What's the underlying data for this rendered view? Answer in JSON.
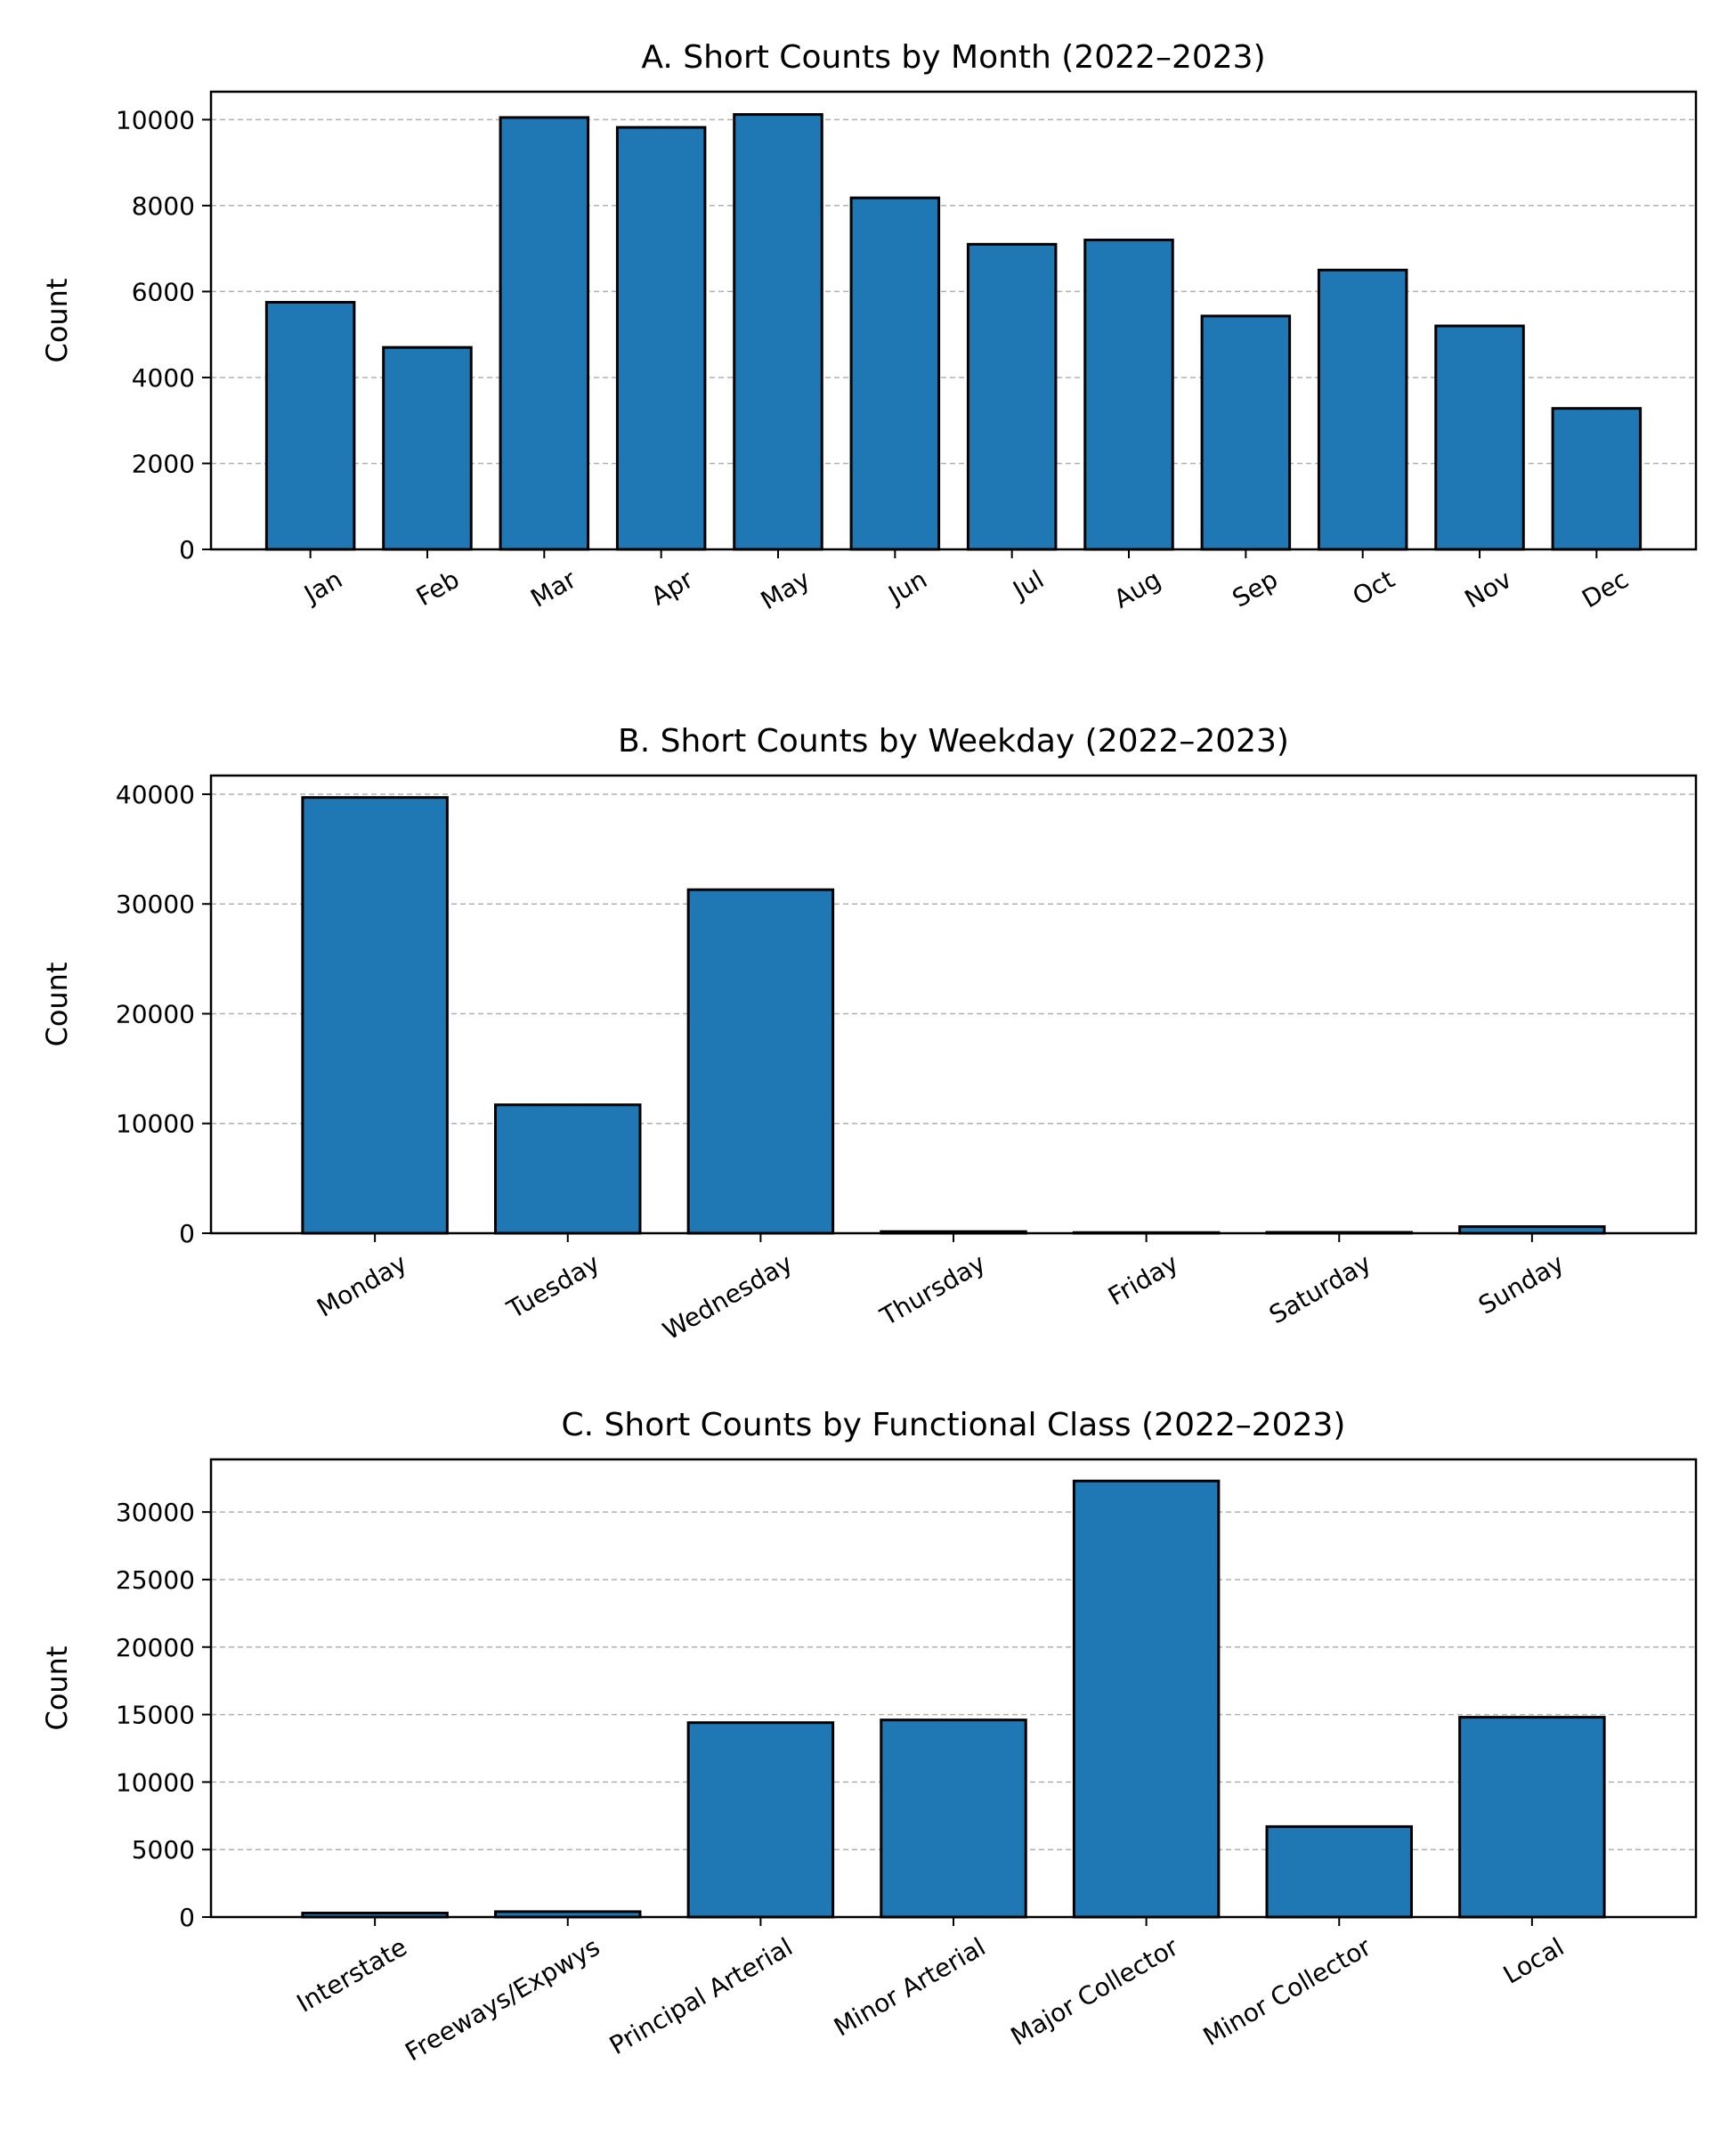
{
  "colors": {
    "bar_fill": "#1f77b4",
    "bar_edge": "#000000",
    "grid": "#b0b0b0"
  },
  "chart_data": [
    {
      "id": "month",
      "type": "bar",
      "title": "A. Short Counts by Month (2022–2023)",
      "xlabel": "",
      "ylabel": "Count",
      "categories": [
        "Jan",
        "Feb",
        "Mar",
        "Apr",
        "May",
        "Jun",
        "Jul",
        "Aug",
        "Sep",
        "Oct",
        "Nov",
        "Dec"
      ],
      "values": [
        5750,
        4700,
        10050,
        9820,
        10120,
        8180,
        7100,
        7200,
        5430,
        6500,
        5200,
        3280
      ],
      "ylim": [
        0,
        10650
      ],
      "yticks": [
        0,
        2000,
        4000,
        6000,
        8000,
        10000
      ],
      "grid": true
    },
    {
      "id": "weekday",
      "type": "bar",
      "title": "B. Short Counts by Weekday (2022–2023)",
      "xlabel": "",
      "ylabel": "Count",
      "categories": [
        "Monday",
        "Tuesday",
        "Wednesday",
        "Thursday",
        "Friday",
        "Saturday",
        "Sunday"
      ],
      "values": [
        39700,
        11700,
        31300,
        150,
        60,
        80,
        600
      ],
      "ylim": [
        0,
        41700
      ],
      "yticks": [
        0,
        10000,
        20000,
        30000,
        40000
      ],
      "grid": true
    },
    {
      "id": "functional-class",
      "type": "bar",
      "title": "C. Short Counts by Functional Class (2022–2023)",
      "xlabel": "",
      "ylabel": "Count",
      "categories": [
        "Interstate",
        "Freeways/Expwys",
        "Principal Arterial",
        "Minor Arterial",
        "Major Collector",
        "Minor Collector",
        "Local"
      ],
      "values": [
        300,
        400,
        14400,
        14600,
        32300,
        6700,
        14800
      ],
      "ylim": [
        0,
        33900
      ],
      "yticks": [
        0,
        5000,
        10000,
        15000,
        20000,
        25000,
        30000
      ],
      "grid": true
    }
  ]
}
